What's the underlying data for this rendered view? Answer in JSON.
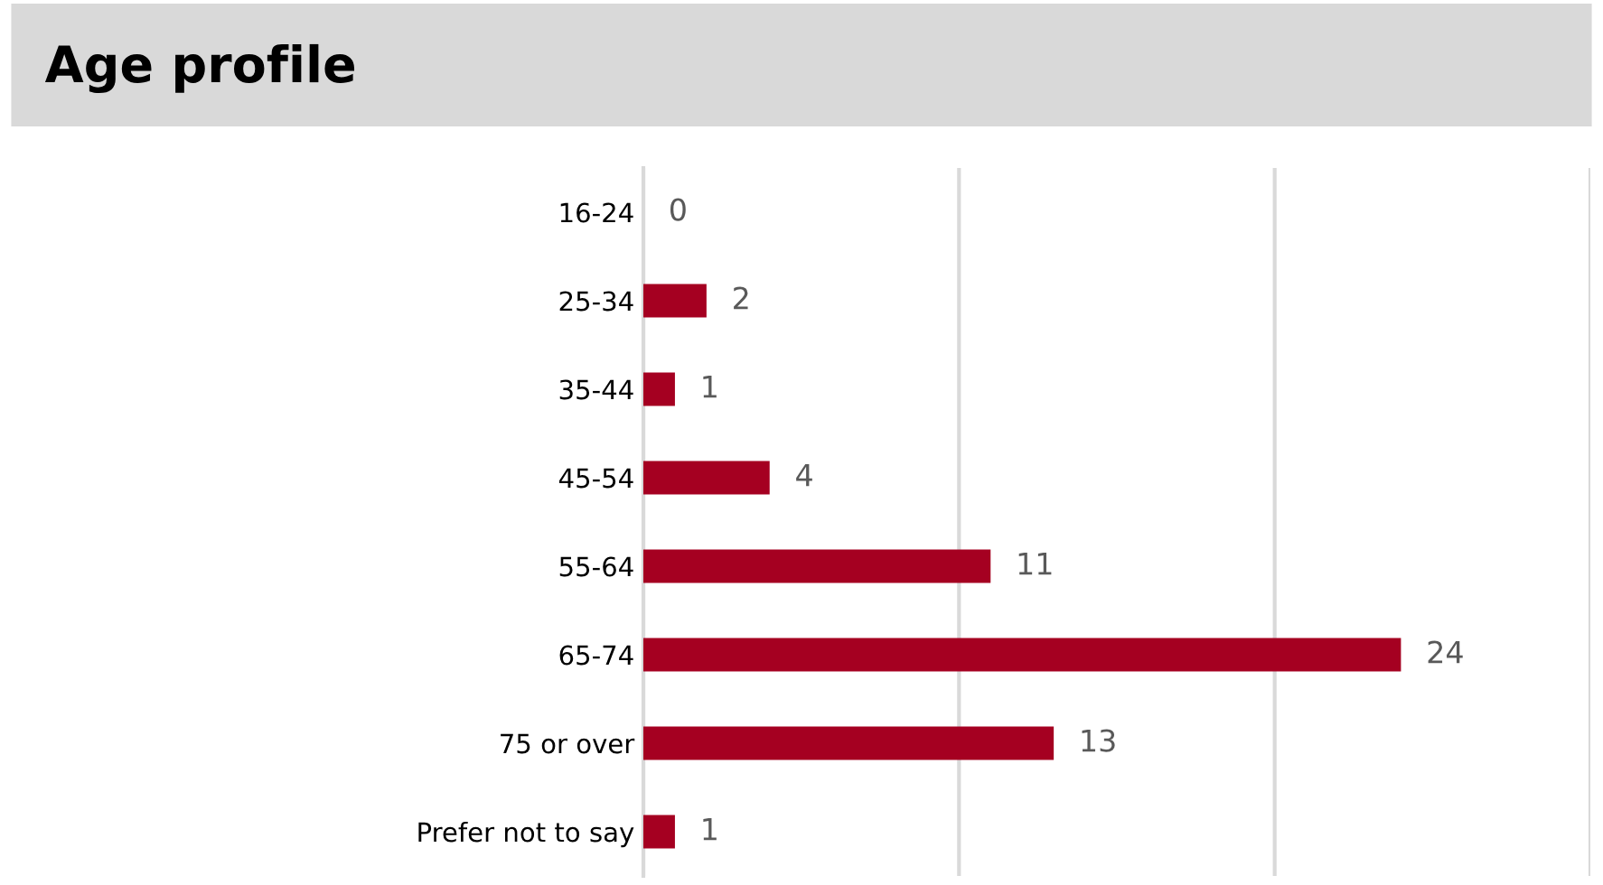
{
  "chart_data": {
    "type": "bar",
    "orientation": "horizontal",
    "title": "Age profile",
    "categories": [
      "16-24",
      "25-34",
      "35-44",
      "45-54",
      "55-64",
      "65-74",
      "75 or over",
      "Prefer not to say"
    ],
    "values": [
      0,
      2,
      1,
      4,
      11,
      24,
      13,
      1
    ],
    "color": "#a50021",
    "data_labels": true,
    "xlim": [
      0,
      30
    ],
    "xticks": [
      {
        "value": 0,
        "label": null
      },
      {
        "value": 10,
        "label": null
      },
      {
        "value": 20,
        "label": null
      },
      {
        "value": 30,
        "label": null
      }
    ],
    "grid": "x",
    "tick_labels": "y",
    "legend": false
  }
}
